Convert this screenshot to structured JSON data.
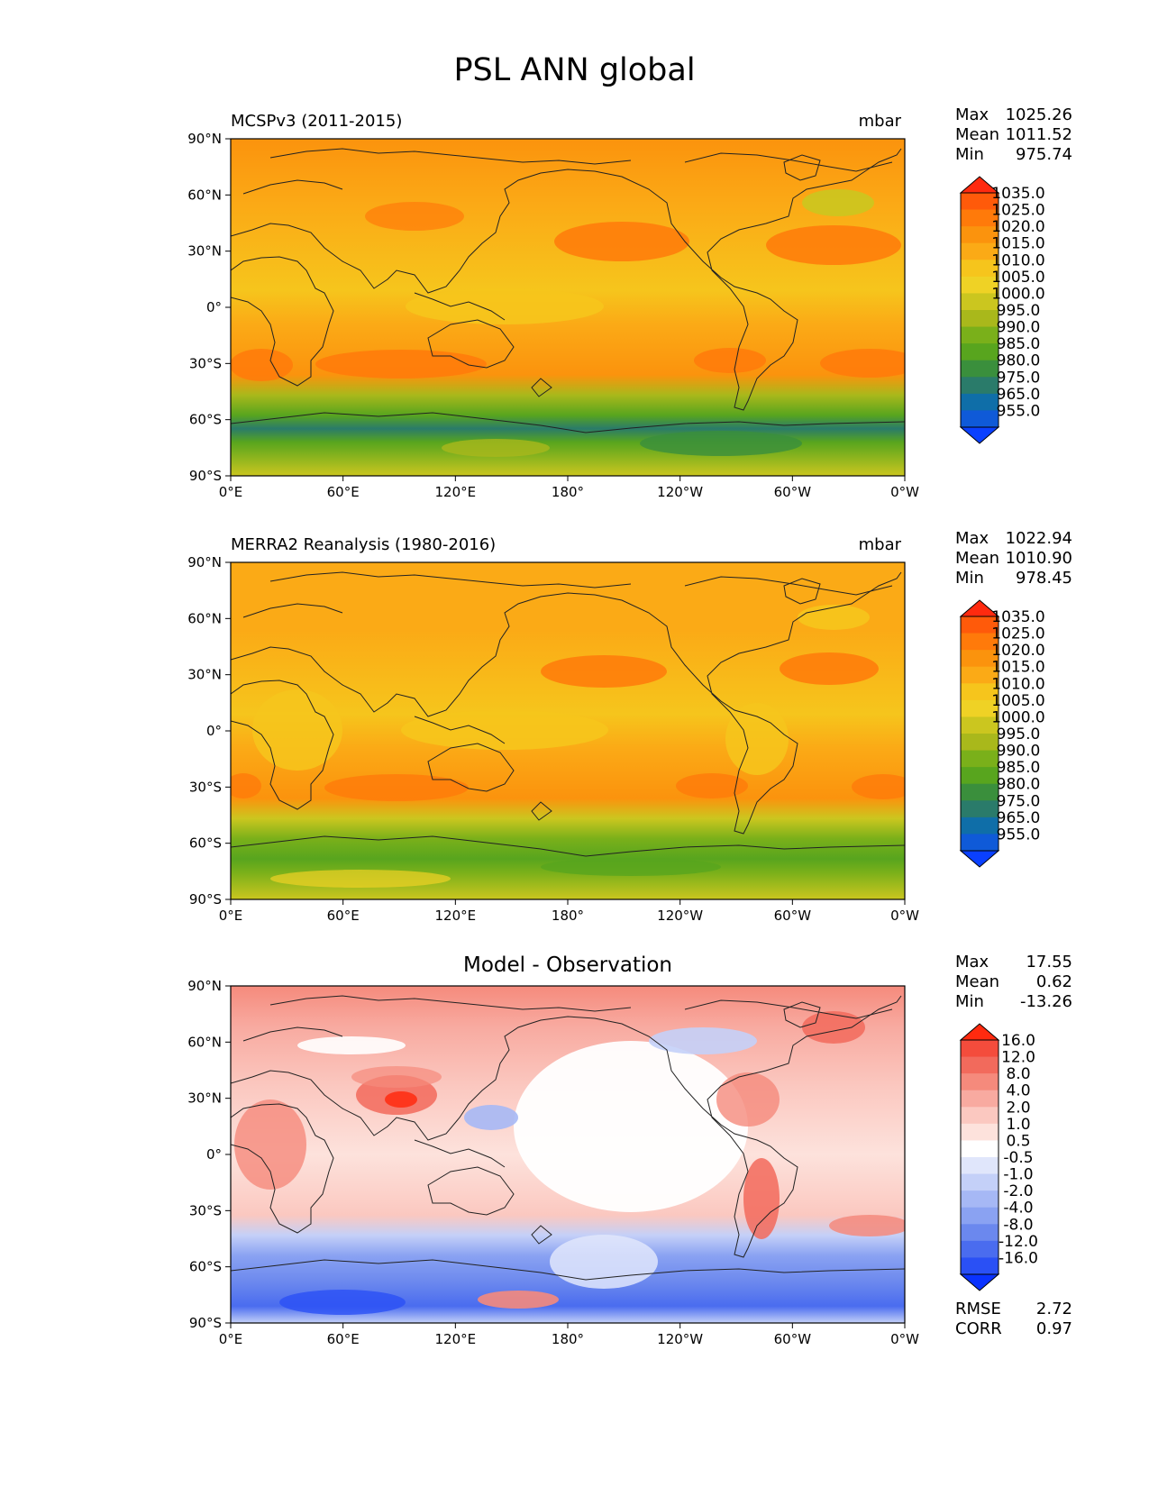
{
  "figure_title": "PSL ANN global",
  "x_ticks": [
    "0°E",
    "60°E",
    "120°E",
    "180°",
    "120°W",
    "60°W",
    "0°W"
  ],
  "y_ticks": [
    "90°N",
    "60°N",
    "30°N",
    "0°",
    "30°S",
    "60°S",
    "90°S"
  ],
  "panels": [
    {
      "title": "MCSPv3 (2011-2015)",
      "units": "mbar",
      "stats": {
        "max_label": "Max",
        "max": "1025.26",
        "mean_label": "Mean",
        "mean": "1011.52",
        "min_label": "Min",
        "min": "975.74"
      },
      "colorbar": {
        "levels": [
          "1035.0",
          "1025.0",
          "1020.0",
          "1015.0",
          "1010.0",
          "1005.0",
          "1000.0",
          "995.0",
          "990.0",
          "985.0",
          "980.0",
          "975.0",
          "965.0",
          "955.0"
        ],
        "colors": [
          "#ff2a0f",
          "#ff5a0a",
          "#ff7a0a",
          "#fb930d",
          "#fbaa16",
          "#f6c51c",
          "#efd225",
          "#cbc61f",
          "#a9b81b",
          "#7ab01a",
          "#58a51e",
          "#3a8f3c",
          "#2a7b6a",
          "#0f6ea8",
          "#0f5ad8",
          "#0a40ff"
        ]
      }
    },
    {
      "title": "MERRA2 Reanalysis (1980-2016)",
      "units": "mbar",
      "stats": {
        "max_label": "Max",
        "max": "1022.94",
        "mean_label": "Mean",
        "mean": "1010.90",
        "min_label": "Min",
        "min": "978.45"
      },
      "colorbar": {
        "levels": [
          "1035.0",
          "1025.0",
          "1020.0",
          "1015.0",
          "1010.0",
          "1005.0",
          "1000.0",
          "995.0",
          "990.0",
          "985.0",
          "980.0",
          "975.0",
          "965.0",
          "955.0"
        ],
        "colors": [
          "#ff2a0f",
          "#ff5a0a",
          "#ff7a0a",
          "#fb930d",
          "#fbaa16",
          "#f6c51c",
          "#efd225",
          "#cbc61f",
          "#a9b81b",
          "#7ab01a",
          "#58a51e",
          "#3a8f3c",
          "#2a7b6a",
          "#0f6ea8",
          "#0f5ad8",
          "#0a40ff"
        ]
      }
    },
    {
      "title": "Model - Observation",
      "units": "",
      "stats": {
        "max_label": "Max",
        "max": "17.55",
        "mean_label": "Mean",
        "mean": "0.62",
        "min_label": "Min",
        "min": "-13.26"
      },
      "colorbar": {
        "levels": [
          "16.0",
          "12.0",
          "8.0",
          "4.0",
          "2.0",
          "1.0",
          "0.5",
          "-0.5",
          "-1.0",
          "-2.0",
          "-4.0",
          "-8.0",
          "-12.0",
          "-16.0"
        ],
        "colors": [
          "#ff2a0f",
          "#f44c3c",
          "#f26a5c",
          "#f58a7c",
          "#f8aaa0",
          "#fbc8c0",
          "#fde2dc",
          "#ffffff",
          "#e0e6fb",
          "#c4d0f8",
          "#a6b8f5",
          "#8aa2f2",
          "#6b88ee",
          "#4a6cef",
          "#2a50f5",
          "#0a32ff"
        ]
      },
      "metrics": {
        "rmse_label": "RMSE",
        "rmse": "2.72",
        "corr_label": "CORR",
        "corr": "0.97"
      }
    }
  ]
}
